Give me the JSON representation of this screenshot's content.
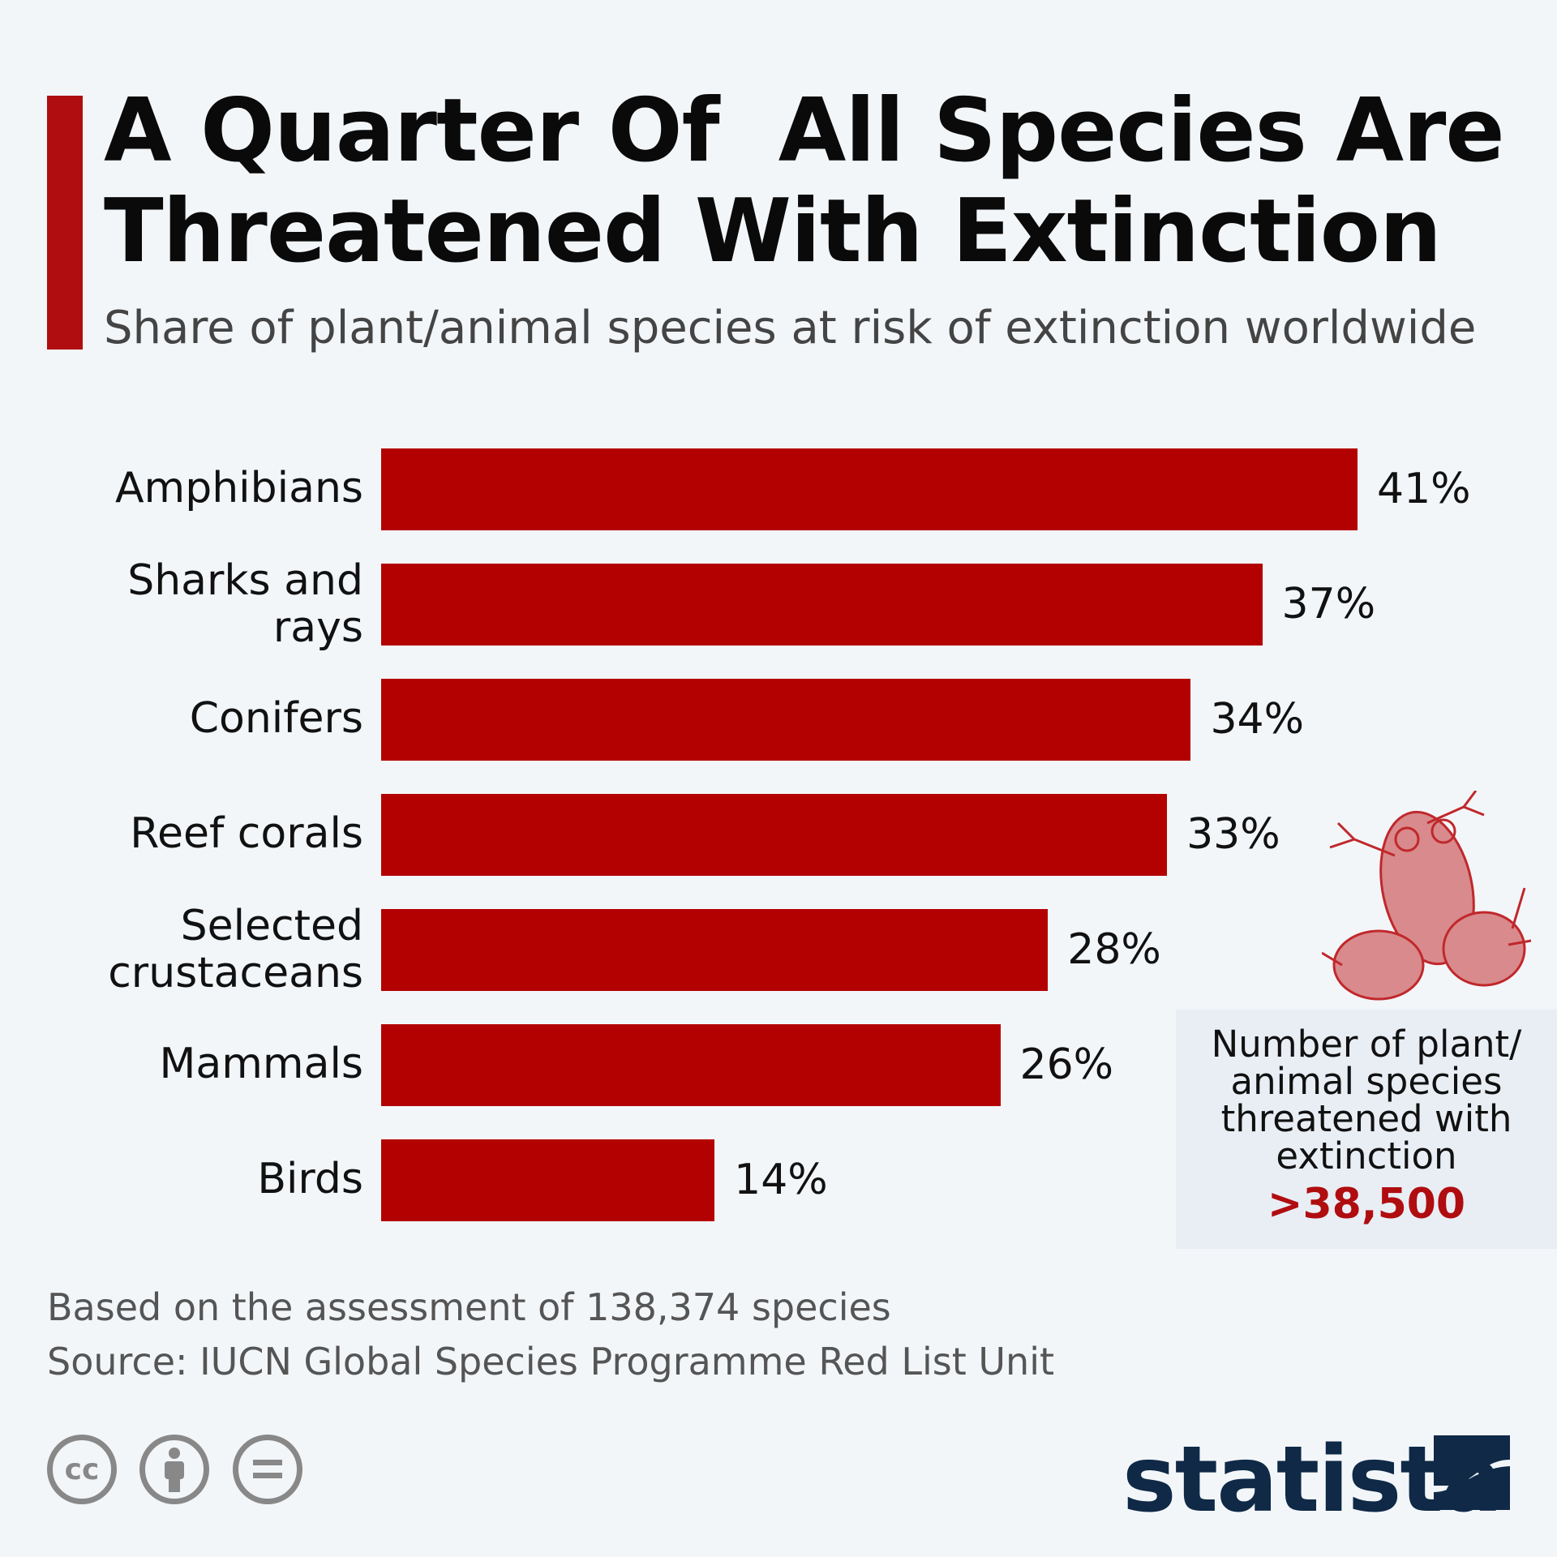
{
  "title_line1": "A Quarter Of  All Species Are",
  "title_line2": "Threatened With Extinction",
  "subtitle": "Share of plant/animal species at risk of extinction worldwide",
  "chart_data": {
    "type": "bar",
    "orientation": "horizontal",
    "categories": [
      "Amphibians",
      "Sharks and rays",
      "Conifers",
      "Reef corals",
      "Selected crustaceans",
      "Mammals",
      "Birds"
    ],
    "values": [
      41,
      37,
      34,
      33,
      28,
      26,
      14
    ],
    "value_labels": [
      "41%",
      "37%",
      "34%",
      "33%",
      "28%",
      "26%",
      "14%"
    ],
    "unit": "%",
    "bar_color": "#b30000",
    "grid": false
  },
  "info_box": {
    "text": "Number of plant/ animal species threatened with extinction",
    "value": ">38,500",
    "value_color": "#b00d10",
    "icon": "frog-icon"
  },
  "footnote": "Based on the assessment of 138,374 species",
  "source": "Source: IUCN Global Species Programme Red List Unit",
  "license_icons": [
    "cc-icon",
    "attribution-icon",
    "no-derivatives-icon"
  ],
  "cc_text": "cc",
  "logo": "statista"
}
